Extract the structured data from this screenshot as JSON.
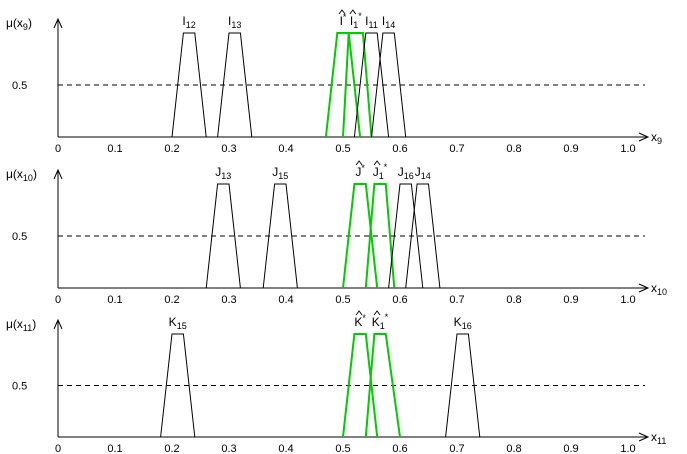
{
  "colors": {
    "axis": "#000000",
    "normal": "#000000",
    "highlight": "#00cc00",
    "background": "#ffffff"
  },
  "chart_data": [
    {
      "type": "line",
      "ylabel": "μ(x9)",
      "ylabel_main": "μ(x",
      "ylabel_sub": "9",
      "ylabel_close": ")",
      "xlabel": "x9",
      "xlabel_main": "x",
      "xlabel_sub": "9",
      "xlim": [
        0,
        1.0
      ],
      "ylim": [
        0,
        1
      ],
      "xticks": [
        "0",
        "0.1",
        "0.2",
        "0.3",
        "0.4",
        "0.5",
        "0.6",
        "0.7",
        "0.8",
        "0.9",
        "1.0"
      ],
      "ytick_label": "0.5",
      "reference_y": 0.5,
      "series": [
        {
          "name": "I12",
          "main": "I",
          "sub": "12",
          "hat": false,
          "star": false,
          "color": "normal",
          "points": [
            [
              0.2,
              0
            ],
            [
              0.22,
              1
            ],
            [
              0.24,
              1
            ],
            [
              0.26,
              0
            ]
          ]
        },
        {
          "name": "I13",
          "main": "I",
          "sub": "13",
          "hat": false,
          "star": false,
          "color": "normal",
          "points": [
            [
              0.28,
              0
            ],
            [
              0.3,
              1
            ],
            [
              0.32,
              1
            ],
            [
              0.34,
              0
            ]
          ]
        },
        {
          "name": "Î*",
          "main": "I",
          "sub": "",
          "hat": true,
          "star": true,
          "color": "highlight",
          "points": [
            [
              0.47,
              0
            ],
            [
              0.49,
              1
            ],
            [
              0.51,
              1
            ],
            [
              0.53,
              0
            ]
          ]
        },
        {
          "name": "Î1*",
          "main": "I",
          "sub": "1",
          "hat": true,
          "star": true,
          "color": "highlight",
          "points": [
            [
              0.5,
              0
            ],
            [
              0.51,
              1
            ],
            [
              0.535,
              1
            ],
            [
              0.55,
              0
            ]
          ]
        },
        {
          "name": "I11",
          "main": "I",
          "sub": "11",
          "hat": false,
          "star": false,
          "color": "normal",
          "points": [
            [
              0.52,
              0
            ],
            [
              0.54,
              1
            ],
            [
              0.56,
              1
            ],
            [
              0.58,
              0
            ]
          ]
        },
        {
          "name": "I14",
          "main": "I",
          "sub": "14",
          "hat": false,
          "star": false,
          "color": "normal",
          "points": [
            [
              0.55,
              0
            ],
            [
              0.57,
              1
            ],
            [
              0.59,
              1
            ],
            [
              0.61,
              0
            ]
          ]
        }
      ]
    },
    {
      "type": "line",
      "ylabel": "μ(x10)",
      "ylabel_main": "μ(x",
      "ylabel_sub": "10",
      "ylabel_close": ")",
      "xlabel": "x10",
      "xlabel_main": "x",
      "xlabel_sub": "10",
      "xlim": [
        0,
        1.0
      ],
      "ylim": [
        0,
        1
      ],
      "xticks": [
        "0",
        "0.1",
        "0.2",
        "0.3",
        "0.4",
        "0.5",
        "0.6",
        "0.7",
        "0.8",
        "0.9",
        "1.0"
      ],
      "ytick_label": "0.5",
      "reference_y": 0.5,
      "series": [
        {
          "name": "J13",
          "main": "J",
          "sub": "13",
          "hat": false,
          "star": false,
          "color": "normal",
          "points": [
            [
              0.26,
              0
            ],
            [
              0.28,
              1
            ],
            [
              0.3,
              1
            ],
            [
              0.32,
              0
            ]
          ]
        },
        {
          "name": "J15",
          "main": "J",
          "sub": "15",
          "hat": false,
          "star": false,
          "color": "normal",
          "points": [
            [
              0.36,
              0
            ],
            [
              0.38,
              1
            ],
            [
              0.4,
              1
            ],
            [
              0.42,
              0
            ]
          ]
        },
        {
          "name": "Ĵ*",
          "main": "J",
          "sub": "",
          "hat": true,
          "star": true,
          "color": "highlight",
          "points": [
            [
              0.5,
              0
            ],
            [
              0.52,
              1
            ],
            [
              0.54,
              1
            ],
            [
              0.56,
              0
            ]
          ]
        },
        {
          "name": "Ĵ1*",
          "main": "J",
          "sub": "1",
          "hat": true,
          "star": true,
          "color": "highlight",
          "points": [
            [
              0.54,
              0
            ],
            [
              0.555,
              1
            ],
            [
              0.575,
              1
            ],
            [
              0.59,
              0
            ]
          ]
        },
        {
          "name": "J16",
          "main": "J",
          "sub": "16",
          "hat": false,
          "star": false,
          "color": "normal",
          "points": [
            [
              0.58,
              0
            ],
            [
              0.6,
              1
            ],
            [
              0.62,
              1
            ],
            [
              0.64,
              0
            ]
          ]
        },
        {
          "name": "J14",
          "main": "J",
          "sub": "14",
          "hat": false,
          "star": false,
          "color": "normal",
          "points": [
            [
              0.61,
              0
            ],
            [
              0.63,
              1
            ],
            [
              0.65,
              1
            ],
            [
              0.67,
              0
            ]
          ]
        }
      ]
    },
    {
      "type": "line",
      "ylabel": "μ(x11)",
      "ylabel_main": "μ(x",
      "ylabel_sub": "11",
      "ylabel_close": ")",
      "xlabel": "x11",
      "xlabel_main": "x",
      "xlabel_sub": "11",
      "xlim": [
        0,
        1.0
      ],
      "ylim": [
        0,
        1
      ],
      "xticks": [
        "0",
        "0.1",
        "0.2",
        "0.3",
        "0.4",
        "0.5",
        "0.6",
        "0.7",
        "0.8",
        "0.9",
        "1.0"
      ],
      "ytick_label": "0.5",
      "reference_y": 0.5,
      "series": [
        {
          "name": "K15",
          "main": "K",
          "sub": "15",
          "hat": false,
          "star": false,
          "color": "normal",
          "points": [
            [
              0.18,
              0
            ],
            [
              0.2,
              1
            ],
            [
              0.22,
              1
            ],
            [
              0.24,
              0
            ]
          ]
        },
        {
          "name": "K̂*",
          "main": "K",
          "sub": "",
          "hat": true,
          "star": true,
          "color": "highlight",
          "points": [
            [
              0.5,
              0
            ],
            [
              0.52,
              1
            ],
            [
              0.54,
              1
            ],
            [
              0.56,
              0
            ]
          ]
        },
        {
          "name": "K̂1*",
          "main": "K",
          "sub": "1",
          "hat": true,
          "star": true,
          "color": "highlight",
          "points": [
            [
              0.54,
              0
            ],
            [
              0.555,
              1
            ],
            [
              0.575,
              1
            ],
            [
              0.6,
              0
            ]
          ]
        },
        {
          "name": "K16",
          "main": "K",
          "sub": "16",
          "hat": false,
          "star": false,
          "color": "normal",
          "points": [
            [
              0.68,
              0
            ],
            [
              0.7,
              1
            ],
            [
              0.72,
              1
            ],
            [
              0.74,
              0
            ]
          ]
        }
      ]
    }
  ]
}
